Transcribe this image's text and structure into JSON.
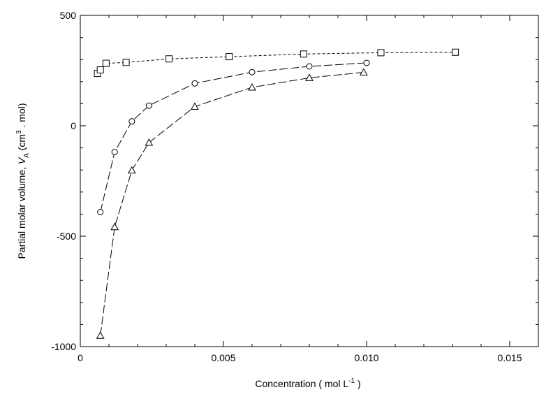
{
  "chart_data": {
    "type": "line",
    "title": "",
    "xlabel": "Concentration ( mol L-1 )",
    "xlabel_parts": {
      "main": "Concentration ( mol L",
      "sup": "-1",
      "tail": " )"
    },
    "ylabel": "Partial molar volume, VA (cm3 . mol)",
    "ylabel_parts": {
      "main": "Partial molar volume, ",
      "var": "V",
      "sub": "A",
      "open": " (cm",
      "sup": "3",
      "tail": " . mol)"
    },
    "xlim": [
      0,
      0.016
    ],
    "ylim": [
      -1000,
      500
    ],
    "xticks": [
      0,
      0.005,
      0.01,
      0.015
    ],
    "xtick_labels": [
      "0",
      "0.005",
      "0.010",
      "0.015"
    ],
    "yticks": [
      -1000,
      -500,
      0,
      500
    ],
    "ytick_labels": [
      "-1000",
      "-500",
      "0",
      "500"
    ],
    "grid": false,
    "legend": "none",
    "series": [
      {
        "marker": "square",
        "line": "short-dash",
        "x": [
          0.0006,
          0.0007,
          0.0009,
          0.0016,
          0.0031,
          0.0052,
          0.0078,
          0.0105,
          0.0131
        ],
        "y": [
          237,
          253,
          283,
          287,
          303,
          313,
          325,
          331,
          333
        ]
      },
      {
        "marker": "circle",
        "line": "long-dash",
        "x": [
          0.0007,
          0.0012,
          0.0018,
          0.0024,
          0.004,
          0.006,
          0.008,
          0.01
        ],
        "y": [
          -391,
          -119,
          20,
          91,
          192,
          243,
          269,
          285
        ]
      },
      {
        "marker": "triangle",
        "line": "long-dash",
        "x": [
          0.0007,
          0.0012,
          0.0018,
          0.0024,
          0.004,
          0.006,
          0.008,
          0.0099
        ],
        "y": [
          -950,
          -458,
          -202,
          -76,
          87,
          174,
          217,
          242
        ]
      }
    ]
  }
}
